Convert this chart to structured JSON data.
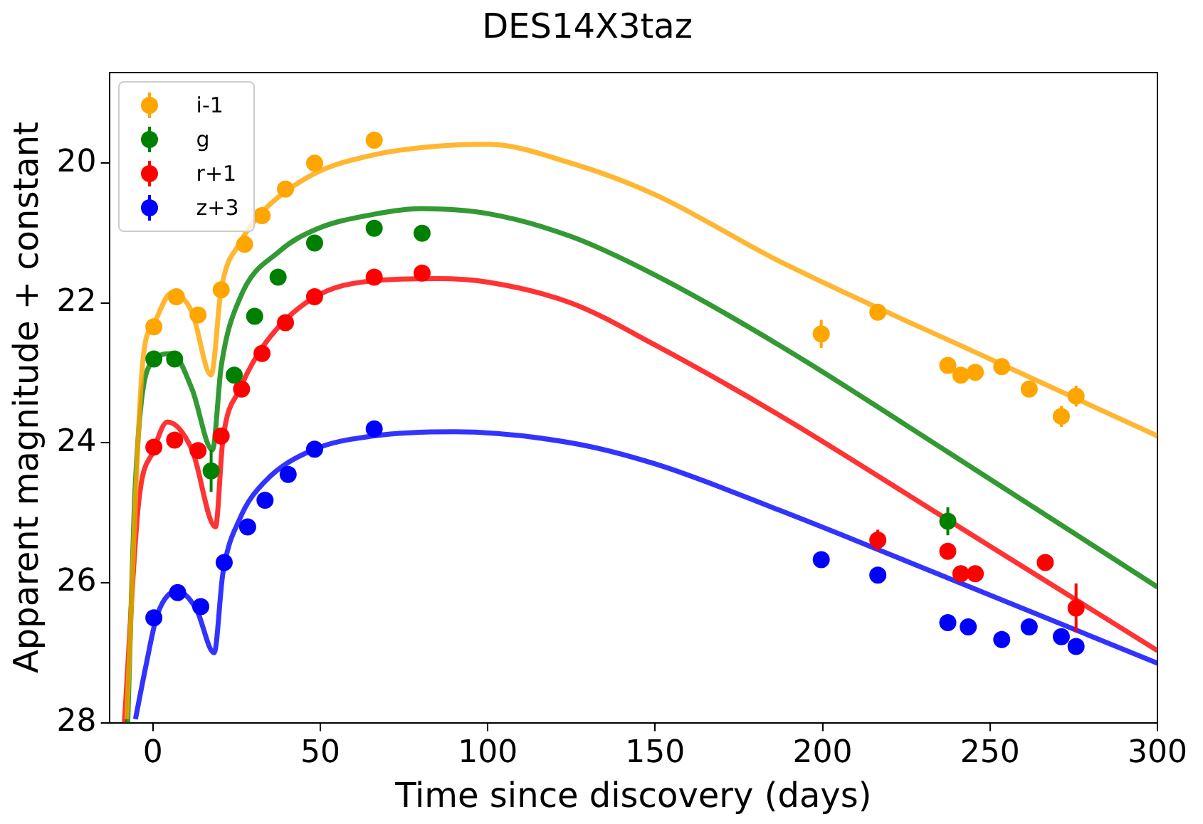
{
  "chart_data": {
    "type": "scatter",
    "title": "DES14X3taz",
    "xlabel": "Time since discovery (days)",
    "ylabel": "Apparent magnitude + constant",
    "xlim": [
      -13,
      300
    ],
    "xticks": [
      0,
      50,
      100,
      150,
      200,
      250,
      300
    ],
    "ylim": [
      28,
      18.7
    ],
    "yticks": [
      28,
      26,
      24,
      22,
      20
    ],
    "grid": false,
    "legend": "top left",
    "series": [
      {
        "name": "i-1",
        "color": "#ffa500",
        "type": "scatter",
        "marker": "circle",
        "x": [
          0.3,
          7,
          13.5,
          20.4,
          27.4,
          32.6,
          39.6,
          48.3,
          66.1,
          199.6,
          216.5,
          237.4,
          241.3,
          245.6,
          253.5,
          261.7,
          271.3,
          275.7
        ],
        "values": [
          22.34,
          21.91,
          22.17,
          21.81,
          21.16,
          20.75,
          20.37,
          20.0,
          19.67,
          22.44,
          22.13,
          22.89,
          23.03,
          22.99,
          22.91,
          23.23,
          23.62,
          23.33
        ],
        "errors": [
          null,
          null,
          null,
          null,
          null,
          null,
          null,
          null,
          null,
          0.2,
          null,
          null,
          null,
          null,
          0.1,
          null,
          0.15,
          0.15
        ]
      },
      {
        "name": "g",
        "color": "#008000",
        "type": "scatter",
        "marker": "circle",
        "x": [
          0.3,
          6.5,
          17.4,
          24.3,
          30.4,
          37.4,
          48.3,
          66.1,
          80.4,
          237.4
        ],
        "values": [
          22.8,
          22.8,
          24.4,
          23.03,
          22.19,
          21.63,
          21.14,
          20.93,
          21.0,
          25.12
        ],
        "errors": [
          null,
          null,
          0.3,
          null,
          null,
          null,
          null,
          null,
          null,
          0.2
        ]
      },
      {
        "name": "r+1",
        "color": "#ff0000",
        "type": "scatter",
        "marker": "circle",
        "x": [
          0.3,
          6.5,
          13.5,
          20.4,
          26.5,
          32.6,
          39.6,
          48.3,
          66.1,
          80.4,
          216.5,
          237.4,
          241.3,
          245.6,
          266.5,
          275.7
        ],
        "values": [
          24.06,
          23.96,
          24.11,
          23.9,
          23.23,
          22.72,
          22.28,
          21.91,
          21.63,
          21.57,
          25.39,
          25.55,
          25.87,
          25.87,
          25.71,
          26.36
        ],
        "errors": [
          null,
          null,
          null,
          null,
          null,
          null,
          null,
          null,
          null,
          null,
          0.15,
          null,
          null,
          null,
          0.1,
          0.35
        ]
      },
      {
        "name": "z+3",
        "color": "#0000ff",
        "type": "scatter",
        "marker": "circle",
        "x": [
          0.3,
          7.4,
          14.3,
          21.3,
          28.3,
          33.5,
          40.4,
          48.3,
          66.1,
          199.6,
          216.5,
          237.4,
          243.5,
          253.5,
          261.7,
          271.3,
          275.7
        ],
        "values": [
          26.5,
          26.14,
          26.34,
          25.71,
          25.2,
          24.82,
          24.45,
          24.09,
          23.8,
          25.67,
          25.89,
          26.57,
          26.63,
          26.81,
          26.63,
          26.77,
          26.91
        ],
        "errors": [
          null,
          null,
          null,
          null,
          null,
          null,
          null,
          null,
          null,
          null,
          null,
          null,
          null,
          0.12,
          null,
          null,
          0.1
        ]
      },
      {
        "color": "#ffa500",
        "type": "line",
        "marker": "none",
        "x": [
          -7.8,
          -3,
          0.3,
          5.7,
          11.7,
          17.4,
          20.4,
          26,
          32.6,
          47.8,
          66,
          84,
          100,
          125,
          150,
          187,
          250,
          300
        ],
        "values": [
          27.95,
          22.83,
          22.3,
          21.85,
          22.13,
          23.03,
          21.8,
          21.14,
          20.7,
          20.16,
          19.88,
          19.76,
          19.73,
          20.0,
          20.45,
          21.4,
          22.8,
          23.9
        ]
      },
      {
        "color": "#008000",
        "type": "line",
        "marker": "none",
        "x": [
          -7.5,
          -5.2,
          0,
          5.7,
          11.7,
          17.8,
          20.4,
          26,
          37.8,
          49,
          66,
          80,
          100,
          125,
          150,
          187,
          237.4,
          300
        ],
        "values": [
          28,
          24.55,
          22.83,
          22.72,
          23.23,
          24.1,
          22.91,
          21.93,
          21.26,
          20.94,
          20.73,
          20.65,
          20.72,
          21.05,
          21.6,
          22.6,
          24.13,
          26.06
        ]
      },
      {
        "color": "#ff0000",
        "type": "line",
        "marker": "none",
        "x": [
          -8.5,
          -4.3,
          0.3,
          4.3,
          11.7,
          18.7,
          20.9,
          26,
          33.5,
          47.8,
          66,
          85,
          100,
          125,
          150,
          187,
          237.4,
          300
        ],
        "values": [
          28,
          24.88,
          24.1,
          23.7,
          24.1,
          25.2,
          23.96,
          23.23,
          22.58,
          21.93,
          21.68,
          21.65,
          21.7,
          22.0,
          22.6,
          23.6,
          25.1,
          26.97
        ]
      },
      {
        "color": "#0000ff",
        "type": "line",
        "marker": "none",
        "x": [
          -5.2,
          -2,
          1.3,
          7.4,
          13,
          18.3,
          20.9,
          26,
          33.5,
          47.8,
          66,
          90,
          125,
          150,
          187,
          237.4,
          300
        ],
        "values": [
          27.95,
          27.17,
          26.46,
          26.12,
          26.38,
          27.0,
          25.87,
          25.08,
          24.55,
          24.1,
          23.9,
          23.84,
          24.0,
          24.3,
          24.96,
          25.93,
          27.15
        ]
      }
    ]
  }
}
